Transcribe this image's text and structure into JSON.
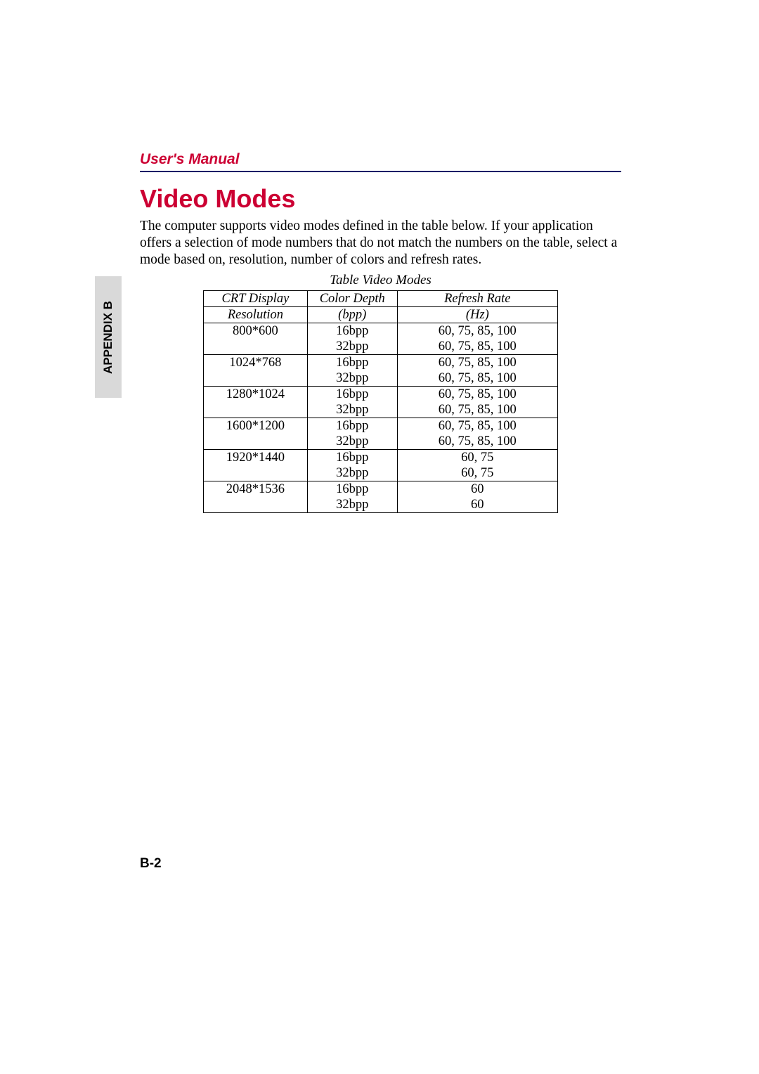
{
  "colors": {
    "accent": "#cc0033",
    "rule": "#001a66",
    "sidebar_bg": "#d9d9d9",
    "text": "#000000",
    "page_bg": "#ffffff"
  },
  "header": {
    "label": "User's Manual"
  },
  "title": "Video Modes",
  "paragraph": "The computer supports video modes defined in the table below. If your application offers a selection of mode numbers that do not match the numbers on the table, select a mode based on, resolution, number of colors and refresh rates.",
  "sidebar": {
    "label_prefix": "A",
    "label_rest": "PPENDIX",
    "label_suffix": " B"
  },
  "table": {
    "caption": "Table  Video Modes",
    "columns": [
      {
        "line1": "CRT Display",
        "line2": "Resolution"
      },
      {
        "line1": "Color Depth",
        "line2": "(bpp)"
      },
      {
        "line1": "Refresh Rate",
        "line2": "(Hz)"
      }
    ],
    "rows": [
      {
        "resolution": "800*600",
        "depth": "16bpp",
        "rate": "60, 75, 85, 100",
        "new_group": true
      },
      {
        "resolution": "",
        "depth": "32bpp",
        "rate": "60, 75, 85, 100",
        "new_group": false
      },
      {
        "resolution": "1024*768",
        "depth": "16bpp",
        "rate": "60, 75, 85, 100",
        "new_group": true
      },
      {
        "resolution": "",
        "depth": "32bpp",
        "rate": "60, 75, 85, 100",
        "new_group": false
      },
      {
        "resolution": "1280*1024",
        "depth": "16bpp",
        "rate": "60, 75, 85, 100",
        "new_group": true
      },
      {
        "resolution": "",
        "depth": "32bpp",
        "rate": "60, 75, 85, 100",
        "new_group": false
      },
      {
        "resolution": "1600*1200",
        "depth": "16bpp",
        "rate": "60, 75, 85, 100",
        "new_group": true
      },
      {
        "resolution": "",
        "depth": "32bpp",
        "rate": "60, 75, 85, 100",
        "new_group": false
      },
      {
        "resolution": "1920*1440",
        "depth": "16bpp",
        "rate": "60, 75",
        "new_group": true
      },
      {
        "resolution": "",
        "depth": "32bpp",
        "rate": "60, 75",
        "new_group": false
      },
      {
        "resolution": "2048*1536",
        "depth": "16bpp",
        "rate": "60",
        "new_group": true
      },
      {
        "resolution": "",
        "depth": "32bpp",
        "rate": "60",
        "new_group": false
      }
    ]
  },
  "page_number": "B-2"
}
